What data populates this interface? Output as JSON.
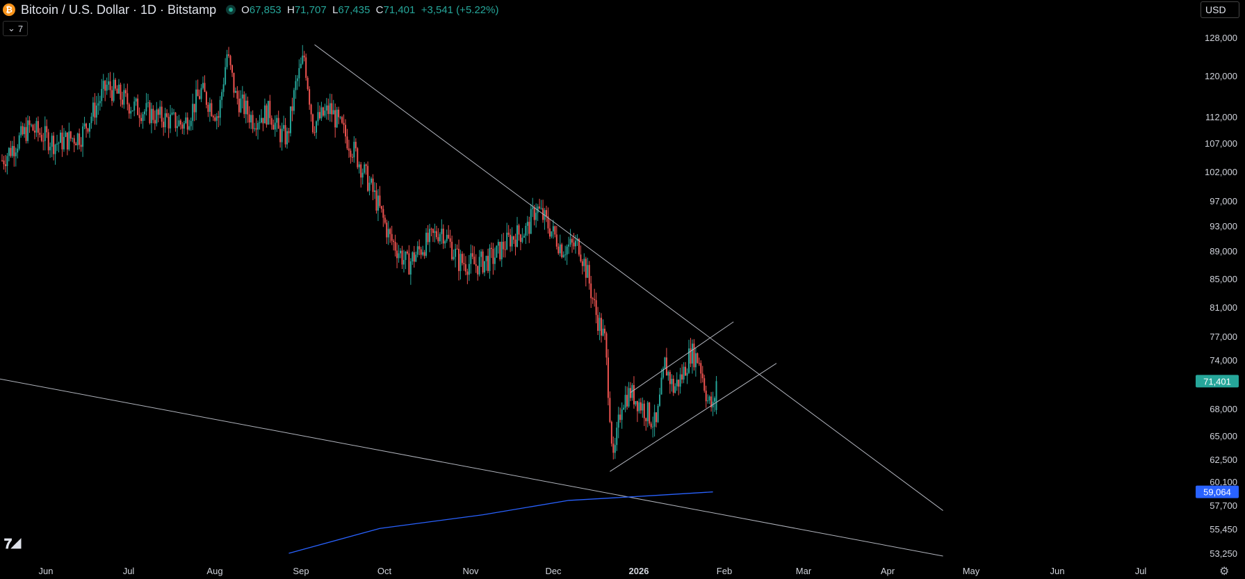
{
  "header": {
    "coin_glyph": "₿",
    "symbol": "Bitcoin / U.S. Dollar · 1D · Bitstamp",
    "open_label": "O",
    "open": "67,853",
    "high_label": "H",
    "high": "71,707",
    "low_label": "L",
    "low": "67,435",
    "close_label": "C",
    "close": "71,401",
    "change": "+3,541 (+5.22%)"
  },
  "indicators_badge": {
    "icon": "chevron-down-icon",
    "count": "7"
  },
  "currency_selector": "USD",
  "colors": {
    "up": "#26a69a",
    "down": "#ef5350",
    "wick_up": "#5fa39c",
    "trendline": "#b2b5be",
    "ma_line": "#2962ff",
    "last_price_bg": "#26a69a",
    "ma_label_bg": "#2962ff"
  },
  "chart_data": {
    "type": "candlestick",
    "symbol": "BTCUSD",
    "interval": "1D",
    "x_labels": [
      "Jun",
      "Jul",
      "Aug",
      "Sep",
      "Oct",
      "Nov",
      "Dec",
      "2026",
      "Feb",
      "Mar",
      "Apr",
      "May",
      "Jun",
      "Jul"
    ],
    "y_labels": [
      "128,000",
      "120,000",
      "112,000",
      "107,000",
      "102,000",
      "97,000",
      "93,000",
      "89,000",
      "85,000",
      "81,000",
      "77,000",
      "74,000",
      "68,000",
      "65,000",
      "62,500",
      "60,100",
      "57,700",
      "55,450",
      "53,250"
    ],
    "last_price_label": "71,401",
    "ma_value_label": "59,064",
    "approx_daily_closes": [
      [
        0,
        104000
      ],
      [
        16,
        110000
      ],
      [
        31,
        107000
      ],
      [
        46,
        108500
      ],
      [
        61,
        118000
      ],
      [
        76,
        114000
      ],
      [
        91,
        112000
      ],
      [
        106,
        110500
      ],
      [
        116,
        117000
      ],
      [
        126,
        112000
      ],
      [
        131,
        124500
      ],
      [
        136,
        116000
      ],
      [
        146,
        111500
      ],
      [
        156,
        113000
      ],
      [
        161,
        109000
      ],
      [
        166,
        108000
      ],
      [
        171,
        118000
      ],
      [
        176,
        124000
      ],
      [
        181,
        110500
      ],
      [
        191,
        113500
      ],
      [
        206,
        105000
      ],
      [
        216,
        98500
      ],
      [
        226,
        91000
      ],
      [
        236,
        87000
      ],
      [
        246,
        90000
      ],
      [
        256,
        92500
      ],
      [
        266,
        87500
      ],
      [
        276,
        87000
      ],
      [
        286,
        88000
      ],
      [
        296,
        91000
      ],
      [
        306,
        92500
      ],
      [
        311,
        96000
      ],
      [
        316,
        94000
      ],
      [
        326,
        89500
      ],
      [
        336,
        90000
      ],
      [
        341,
        85500
      ],
      [
        346,
        80000
      ],
      [
        351,
        76500
      ],
      [
        356,
        62000
      ],
      [
        361,
        69000
      ],
      [
        366,
        70000
      ],
      [
        376,
        67500
      ],
      [
        381,
        66000
      ],
      [
        386,
        73500
      ],
      [
        391,
        70500
      ],
      [
        396,
        72000
      ],
      [
        401,
        75000
      ],
      [
        406,
        74000
      ],
      [
        411,
        69000
      ],
      [
        414,
        68000
      ],
      [
        416,
        71401
      ]
    ],
    "trendlines": [
      {
        "name": "descending-resistance",
        "points": [
          [
            182,
            126500
          ],
          [
            548,
            57200
          ]
        ]
      },
      {
        "name": "lower-support",
        "points": [
          [
            -60,
            74000
          ],
          [
            548,
            53000
          ]
        ]
      },
      {
        "name": "channel-upper",
        "points": [
          [
            366,
            70000
          ],
          [
            426,
            79000
          ]
        ]
      },
      {
        "name": "channel-lower",
        "points": [
          [
            354,
            61200
          ],
          [
            451,
            73600
          ]
        ]
      }
    ],
    "moving_average": {
      "label": "59,064",
      "points": [
        [
          167,
          53250
        ],
        [
          220,
          55500
        ],
        [
          280,
          56800
        ],
        [
          330,
          58200
        ],
        [
          380,
          58700
        ],
        [
          414,
          59064
        ]
      ]
    },
    "grid": false
  },
  "logo_text": "TV",
  "settings_icon": "gear-icon"
}
